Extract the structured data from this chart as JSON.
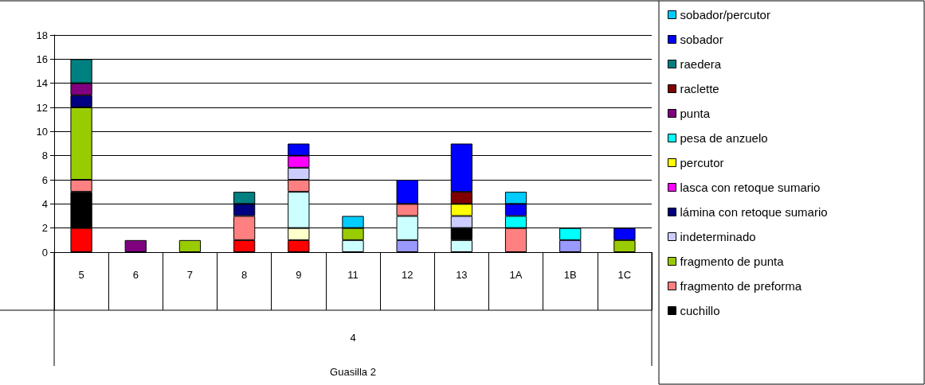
{
  "chart_data": {
    "type": "bar",
    "stacked": true,
    "categories": [
      "5",
      "6",
      "7",
      "8",
      "9",
      "11",
      "12",
      "13",
      "1A",
      "1B",
      "1C"
    ],
    "annotations": [
      "4",
      "Guasilla 2"
    ],
    "series": [
      {
        "color": "#9999ff",
        "values": [
          null,
          null,
          null,
          null,
          null,
          null,
          1,
          null,
          null,
          1,
          null
        ]
      },
      {
        "color": "#ff0000",
        "values": [
          2,
          null,
          null,
          1,
          1,
          null,
          null,
          null,
          null,
          null,
          null
        ]
      },
      {
        "color": "#ffffcc",
        "values": [
          null,
          null,
          null,
          null,
          1,
          null,
          null,
          null,
          null,
          null,
          null
        ]
      },
      {
        "color": "#ccffff",
        "values": [
          null,
          null,
          null,
          null,
          3,
          1,
          2,
          1,
          null,
          null,
          null
        ]
      },
      {
        "name": "cuchillo",
        "color": "#000000",
        "values": [
          3,
          null,
          null,
          null,
          null,
          null,
          null,
          1,
          null,
          null,
          null
        ]
      },
      {
        "name": "fragmento de preforma",
        "color": "#ff8080",
        "values": [
          1,
          null,
          null,
          2,
          1,
          null,
          1,
          null,
          2,
          null,
          null
        ]
      },
      {
        "name": "fragmento de punta",
        "color": "#99cc00",
        "values": [
          6,
          null,
          1,
          null,
          null,
          1,
          null,
          null,
          null,
          null,
          1
        ]
      },
      {
        "name": "indeterminado",
        "color": "#ccccff",
        "values": [
          null,
          null,
          null,
          null,
          1,
          null,
          null,
          1,
          null,
          null,
          null
        ]
      },
      {
        "name": "lámina con retoque sumario",
        "color": "#000080",
        "values": [
          1,
          null,
          null,
          1,
          null,
          null,
          null,
          null,
          null,
          null,
          null
        ]
      },
      {
        "name": "lasca con retoque sumario",
        "color": "#ff00ff",
        "values": [
          null,
          null,
          null,
          null,
          1,
          null,
          null,
          null,
          null,
          null,
          null
        ]
      },
      {
        "name": "percutor",
        "color": "#ffff00",
        "values": [
          null,
          null,
          null,
          null,
          null,
          null,
          null,
          1,
          null,
          null,
          null
        ]
      },
      {
        "name": "pesa de anzuelo",
        "color": "#00ffff",
        "values": [
          null,
          null,
          null,
          null,
          null,
          null,
          null,
          null,
          1,
          1,
          null
        ]
      },
      {
        "name": "punta",
        "color": "#800080",
        "values": [
          1,
          1,
          null,
          null,
          null,
          null,
          null,
          null,
          null,
          null,
          null
        ]
      },
      {
        "name": "raclette",
        "color": "#800000",
        "values": [
          null,
          null,
          null,
          null,
          null,
          null,
          null,
          1,
          null,
          null,
          null
        ]
      },
      {
        "name": "raedera",
        "color": "#008080",
        "values": [
          2,
          null,
          null,
          1,
          null,
          null,
          null,
          null,
          null,
          null,
          null
        ]
      },
      {
        "name": "sobador",
        "color": "#0000ff",
        "values": [
          null,
          null,
          null,
          null,
          1,
          null,
          2,
          4,
          1,
          null,
          1
        ]
      },
      {
        "name": "sobador/percutor",
        "color": "#00ccff",
        "values": [
          null,
          null,
          null,
          null,
          null,
          1,
          null,
          null,
          1,
          null,
          null
        ]
      }
    ],
    "ylim": [
      0,
      18
    ],
    "yticks": [
      0,
      2,
      4,
      6,
      8,
      10,
      12,
      14,
      16,
      18
    ],
    "grid": "y",
    "legend": "right"
  }
}
